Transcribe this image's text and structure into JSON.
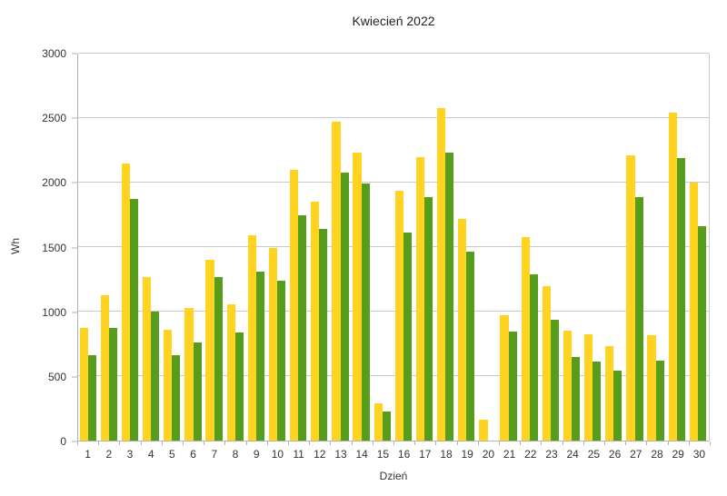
{
  "chart": {
    "title": "Kwiecień 2022",
    "y_axis": {
      "label": "Wh",
      "ticks": [
        0,
        500,
        1000,
        1500,
        2000,
        2500,
        3000
      ],
      "max": 3000
    },
    "x_axis": {
      "label": "Dzień"
    }
  },
  "chart_data": {
    "type": "bar",
    "title": "Kwiecień 2022",
    "xlabel": "Dzień",
    "ylabel": "Wh",
    "ylim": [
      0,
      3000
    ],
    "y_tick_step": 500,
    "grid": true,
    "legend": "none",
    "categories": [
      "1",
      "2",
      "3",
      "4",
      "5",
      "6",
      "7",
      "8",
      "9",
      "10",
      "11",
      "12",
      "13",
      "14",
      "15",
      "16",
      "17",
      "18",
      "19",
      "20",
      "21",
      "22",
      "23",
      "24",
      "25",
      "26",
      "27",
      "28",
      "29",
      "30"
    ],
    "series": [
      {
        "name": "yellow",
        "color": "#FFD320",
        "values": [
          870,
          1125,
          2145,
          1265,
          860,
          1030,
          1400,
          1055,
          1590,
          1490,
          2100,
          1855,
          2470,
          2230,
          290,
          1940,
          2200,
          2580,
          1715,
          165,
          970,
          1575,
          1200,
          850,
          825,
          735,
          2210,
          815,
          2545,
          2000
        ]
      },
      {
        "name": "green",
        "color": "#579D1C",
        "values": [
          665,
          870,
          1875,
          1000,
          665,
          760,
          1270,
          835,
          1310,
          1240,
          1750,
          1640,
          2080,
          1990,
          225,
          1615,
          1890,
          2230,
          1465,
          0,
          845,
          1290,
          935,
          645,
          610,
          545,
          1890,
          620,
          2190,
          1665
        ]
      }
    ]
  },
  "colors": {
    "axis": "#b2b2b2",
    "grid": "#c9c9c9",
    "text": "#333333",
    "background": "#ffffff"
  }
}
